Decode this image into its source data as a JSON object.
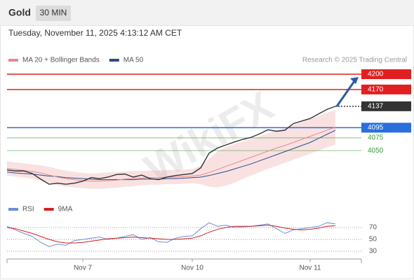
{
  "header": {
    "symbol": "Gold",
    "interval": "30 MIN",
    "timestamp": "Tuesday, November 11, 2025 4:13:12 AM CET",
    "watermark": "WikiFX"
  },
  "chart_data": [
    {
      "type": "line",
      "source": "Research © 2025 Trading Central",
      "ylim": [
        3954,
        4222
      ],
      "series": [
        {
          "color": "#333333",
          "values": [
            4012,
            4010,
            4010,
            4005,
            3994,
            3984,
            3986,
            3984,
            3986,
            3990,
            3997,
            3995,
            3998,
            4003,
            4004,
            3998,
            4002,
            3995,
            3993,
            3998,
            4001,
            4003,
            4005,
            4016,
            4045,
            4055,
            4061,
            4067,
            4072,
            4076,
            4083,
            4091,
            4088,
            4090,
            4103,
            4108,
            4113,
            4122,
            4131,
            4137
          ]
        },
        {
          "name": "MA 20 + Bollinger Bands",
          "color": "#e8888a",
          "values": [
            4015,
            4013,
            4011,
            4009,
            4006,
            4002,
            3998,
            3995,
            3993,
            3991,
            3990,
            3990,
            3991,
            3992,
            3994,
            3995,
            3996,
            3997,
            3997,
            3998,
            3998,
            3999,
            4000,
            4002,
            4007,
            4013,
            4019,
            4025,
            4031,
            4037,
            4043,
            4049,
            4055,
            4060,
            4066,
            4072,
            4078,
            4084,
            4090,
            4096
          ],
          "upper": [
            4029,
            4027,
            4025,
            4023,
            4021,
            4018,
            4014,
            4011,
            4008,
            4006,
            4005,
            4006,
            4007,
            4008,
            4009,
            4010,
            4010,
            4011,
            4011,
            4012,
            4012,
            4013,
            4014,
            4020,
            4035,
            4048,
            4057,
            4063,
            4068,
            4073,
            4078,
            4084,
            4090,
            4094,
            4100,
            4106,
            4112,
            4118,
            4124,
            4130
          ],
          "lower": [
            4001,
            3999,
            3997,
            3995,
            3991,
            3986,
            3982,
            3979,
            3978,
            3976,
            3975,
            3975,
            3976,
            3977,
            3979,
            3980,
            3982,
            3983,
            3983,
            3984,
            3984,
            3985,
            3986,
            3984,
            3979,
            3978,
            3981,
            3987,
            3994,
            4001,
            4008,
            4014,
            4020,
            4026,
            4032,
            4038,
            4044,
            4050,
            4056,
            4062
          ]
        },
        {
          "name": "MA 50",
          "color": "#2c4a8c",
          "values": [
            4008,
            4006,
            4005,
            4004,
            4002,
            4000,
            3999,
            3997,
            3996,
            3995,
            3994,
            3993,
            3993,
            3993,
            3993,
            3993,
            3994,
            3994,
            3994,
            3995,
            3995,
            3996,
            3997,
            3998,
            4001,
            4005,
            4009,
            4014,
            4019,
            4024,
            4030,
            4036,
            4042,
            4048,
            4054,
            4060,
            4066,
            4074,
            4082,
            4090
          ]
        }
      ],
      "levels": [
        {
          "value": 4200,
          "color": "#e02020",
          "style": "box",
          "line": "solid"
        },
        {
          "value": 4170,
          "color": "#e02020",
          "style": "box",
          "line": "solid"
        },
        {
          "value": 4137,
          "color": "#333333",
          "style": "box",
          "line": "dotted"
        },
        {
          "value": 4095,
          "color": "#2a6fdb",
          "style": "box",
          "line": "solid"
        },
        {
          "value": 4075,
          "color": "#3a9a3a",
          "style": "text",
          "line": "thin"
        },
        {
          "value": 4050,
          "color": "#3a9a3a",
          "style": "text",
          "line": "thin"
        }
      ]
    },
    {
      "type": "line",
      "categories": [
        null,
        null,
        null,
        null,
        null,
        null,
        null,
        null,
        null,
        "Nov 7",
        null,
        null,
        null,
        null,
        null,
        null,
        null,
        null,
        null,
        null,
        null,
        null,
        "Nov 10",
        null,
        null,
        null,
        null,
        null,
        null,
        null,
        null,
        null,
        null,
        null,
        null,
        null,
        "Nov 11",
        null,
        null,
        null
      ],
      "ylim": [
        20,
        100
      ],
      "yticks": [
        30,
        50,
        70
      ],
      "series": [
        {
          "name": "RSI",
          "color": "#6a8fd8",
          "values": [
            72,
            66,
            60,
            55,
            45,
            38,
            42,
            40,
            48,
            50,
            52,
            54,
            50,
            52,
            55,
            58,
            50,
            53,
            46,
            45,
            52,
            55,
            56,
            68,
            78,
            72,
            74,
            70,
            71,
            72,
            74,
            76,
            68,
            60,
            66,
            68,
            70,
            72,
            78,
            76
          ]
        },
        {
          "name": "9MA",
          "color": "#d42020",
          "values": [
            70,
            68,
            64,
            60,
            55,
            50,
            46,
            44,
            44,
            45,
            47,
            49,
            51,
            52,
            53,
            54,
            53,
            52,
            51,
            50,
            50,
            51,
            52,
            56,
            62,
            67,
            70,
            72,
            72,
            72,
            73,
            74,
            72,
            69,
            67,
            66,
            67,
            69,
            72,
            73
          ]
        }
      ]
    }
  ]
}
